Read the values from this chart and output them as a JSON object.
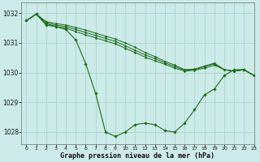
{
  "background_color": "#cceae7",
  "grid_color": "#aad4d0",
  "line_color": "#1a6b1a",
  "marker_color": "#1a6b1a",
  "title": "Graphe pression niveau de la mer (hPa)",
  "xlim": [
    -0.5,
    23
  ],
  "ylim": [
    1027.6,
    1032.35
  ],
  "yticks": [
    1028,
    1029,
    1030,
    1031,
    1032
  ],
  "xticks": [
    0,
    1,
    2,
    3,
    4,
    5,
    6,
    7,
    8,
    9,
    10,
    11,
    12,
    13,
    14,
    15,
    16,
    17,
    18,
    19,
    20,
    21,
    22,
    23
  ],
  "series": [
    {
      "x": [
        0,
        1,
        2,
        3,
        4,
        5,
        6,
        7,
        8,
        9,
        10,
        11,
        12,
        13,
        14,
        15,
        16,
        17,
        18,
        19,
        20,
        21,
        22,
        23
      ],
      "y": [
        1031.75,
        1031.97,
        1031.6,
        1031.55,
        1031.45,
        1031.1,
        1030.3,
        1029.3,
        1028.0,
        1027.85,
        1028.0,
        1028.25,
        1028.3,
        1028.25,
        1028.05,
        1028.0,
        1028.3,
        1028.75,
        1029.25,
        1029.45,
        1029.9,
        1030.1,
        1030.1,
        1029.9
      ]
    },
    {
      "x": [
        0,
        1,
        2,
        3,
        4,
        5,
        6,
        7,
        8,
        9,
        10,
        11,
        12,
        13,
        14,
        15,
        16,
        17,
        18,
        19,
        20,
        21,
        22,
        23
      ],
      "y": [
        1031.75,
        1031.97,
        1031.65,
        1031.55,
        1031.5,
        1031.38,
        1031.27,
        1031.17,
        1031.07,
        1030.97,
        1030.82,
        1030.68,
        1030.52,
        1030.4,
        1030.28,
        1030.15,
        1030.05,
        1030.08,
        1030.15,
        1030.25,
        1030.1,
        1030.05,
        1030.1,
        1029.9
      ]
    },
    {
      "x": [
        0,
        1,
        2,
        3,
        4,
        5,
        6,
        7,
        8,
        9,
        10,
        11,
        12,
        13,
        14,
        15,
        16,
        17,
        18,
        19,
        20,
        21,
        22,
        23
      ],
      "y": [
        1031.75,
        1031.97,
        1031.68,
        1031.6,
        1031.55,
        1031.45,
        1031.35,
        1031.25,
        1031.15,
        1031.05,
        1030.9,
        1030.75,
        1030.6,
        1030.47,
        1030.33,
        1030.2,
        1030.08,
        1030.1,
        1030.2,
        1030.3,
        1030.1,
        1030.05,
        1030.1,
        1029.9
      ]
    },
    {
      "x": [
        0,
        1,
        2,
        3,
        4,
        5,
        6,
        7,
        8,
        9,
        10,
        11,
        12,
        13,
        14,
        15,
        16,
        17,
        18,
        19,
        20,
        21,
        22,
        23
      ],
      "y": [
        1031.75,
        1031.97,
        1031.72,
        1031.65,
        1031.6,
        1031.52,
        1031.43,
        1031.33,
        1031.23,
        1031.13,
        1031.0,
        1030.85,
        1030.68,
        1030.54,
        1030.38,
        1030.25,
        1030.1,
        1030.12,
        1030.22,
        1030.32,
        1030.1,
        1030.05,
        1030.1,
        1029.9
      ]
    }
  ]
}
